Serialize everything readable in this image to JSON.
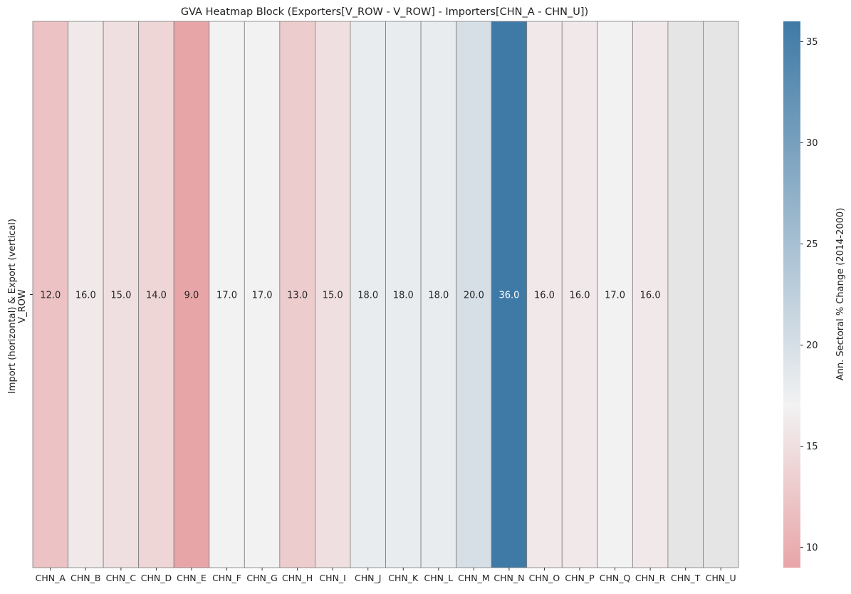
{
  "chart_data": {
    "type": "heatmap",
    "title": "GVA Heatmap Block (Exporters[V_ROW - V_ROW] - Importers[CHN_A - CHN_U])",
    "ylabel_lines": [
      "Import (horizontal) & Export (vertical)",
      "V_ROW"
    ],
    "categories": [
      "CHN_A",
      "CHN_B",
      "CHN_C",
      "CHN_D",
      "CHN_E",
      "CHN_F",
      "CHN_G",
      "CHN_H",
      "CHN_I",
      "CHN_J",
      "CHN_K",
      "CHN_L",
      "CHN_M",
      "CHN_N",
      "CHN_O",
      "CHN_P",
      "CHN_Q",
      "CHN_R",
      "CHN_T",
      "CHN_U"
    ],
    "rows": [
      "V_ROW"
    ],
    "series": [
      {
        "values": [
          12.0,
          16.0,
          15.0,
          14.0,
          9.0,
          17.0,
          17.0,
          13.0,
          15.0,
          18.0,
          18.0,
          18.0,
          20.0,
          36.0,
          16.0,
          16.0,
          17.0,
          16.0,
          null,
          null
        ]
      }
    ],
    "missing_color": "#e5e5e5",
    "colorbar": {
      "label": "Ann. Sectoral % Change (2014-2000)",
      "range": [
        9,
        36
      ],
      "center": 17,
      "ticks": [
        10,
        15,
        20,
        25,
        30,
        35
      ],
      "low_color": "#e8a5a8",
      "mid_color": "#f2f2f2",
      "high_color": "#3f7aa6"
    }
  }
}
